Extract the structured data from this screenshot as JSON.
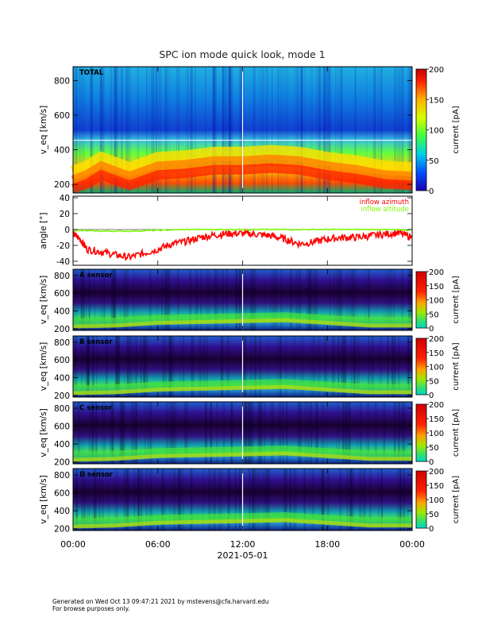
{
  "title": "SPC ion mode quick look, mode 1",
  "chart_data": [
    {
      "type": "heatmap",
      "panel_label": "TOTAL",
      "ylabel": "v_eq [km/s]",
      "ylim": [
        150,
        880
      ],
      "yticks": [
        200,
        400,
        600,
        800
      ],
      "colorbar": {
        "label": "current [pA]",
        "range": [
          0,
          200
        ],
        "ticks": [
          0,
          50,
          100,
          150,
          200
        ],
        "colormap": "rainbow"
      },
      "peak_ridge": {
        "x_hours": [
          0,
          1,
          2,
          3,
          4,
          5,
          6,
          8,
          10,
          12,
          14,
          16,
          18,
          20,
          22,
          24
        ],
        "v_kms": [
          220,
          250,
          300,
          270,
          240,
          270,
          300,
          310,
          330,
          330,
          340,
          330,
          300,
          280,
          250,
          240
        ]
      }
    },
    {
      "type": "line",
      "ylabel": "angle [°]",
      "ylim": [
        -45,
        42
      ],
      "yticks": [
        -40,
        -20,
        0,
        20,
        40
      ],
      "series": [
        {
          "name": "inflow azimuth",
          "color": "#ff0000",
          "x_hours": [
            0,
            0.5,
            1,
            2,
            3,
            4,
            5,
            6,
            7,
            8,
            9,
            10,
            11,
            12,
            13,
            14,
            15,
            16,
            17,
            18,
            19,
            20,
            21,
            22,
            23,
            24
          ],
          "values": [
            -5,
            -12,
            -25,
            -28,
            -32,
            -35,
            -30,
            -25,
            -18,
            -15,
            -10,
            -7,
            -5,
            -5,
            -6,
            -8,
            -12,
            -18,
            -16,
            -12,
            -10,
            -10,
            -8,
            -6,
            -4,
            -10
          ]
        },
        {
          "name": "inflow altitude",
          "color": "#7cfc00",
          "x_hours": [
            0,
            2,
            4,
            6,
            8,
            10,
            12,
            14,
            16,
            18,
            20,
            22,
            24
          ],
          "values": [
            -1,
            -2,
            -2,
            -1,
            0,
            0,
            0,
            0,
            0,
            0,
            0,
            0,
            -1
          ]
        }
      ]
    },
    {
      "type": "heatmap",
      "panel_label": "A sensor",
      "ylabel": "v_eq [km/s]",
      "ylim": [
        180,
        870
      ],
      "yticks": [
        200,
        400,
        600,
        800
      ],
      "colorbar": {
        "label": "current [pA]",
        "range": [
          0,
          200
        ],
        "ticks": [
          0,
          50,
          100,
          150,
          200
        ]
      }
    },
    {
      "type": "heatmap",
      "panel_label": "B sensor",
      "ylabel": "v_eq [km/s]",
      "ylim": [
        180,
        870
      ],
      "yticks": [
        200,
        400,
        600,
        800
      ],
      "colorbar": {
        "label": "current [pA]",
        "range": [
          0,
          200
        ],
        "ticks": [
          0,
          50,
          100,
          150,
          200
        ]
      }
    },
    {
      "type": "heatmap",
      "panel_label": "C sensor",
      "ylabel": "v_eq [km/s]",
      "ylim": [
        180,
        870
      ],
      "yticks": [
        200,
        400,
        600,
        800
      ],
      "colorbar": {
        "label": "current [pA]",
        "range": [
          0,
          200
        ],
        "ticks": [
          0,
          50,
          100,
          150,
          200
        ]
      }
    },
    {
      "type": "heatmap",
      "panel_label": "D sensor",
      "ylabel": "v_eq [km/s]",
      "ylim": [
        180,
        870
      ],
      "yticks": [
        200,
        400,
        600,
        800
      ],
      "colorbar": {
        "label": "current [pA]",
        "range": [
          0,
          200
        ],
        "ticks": [
          0,
          50,
          100,
          150,
          200
        ]
      }
    }
  ],
  "x_axis": {
    "tick_labels": [
      "00:00",
      "06:00",
      "12:00",
      "18:00",
      "00:00"
    ],
    "tick_hours": [
      0,
      6,
      12,
      18,
      24
    ],
    "date_label": "2021-05-01"
  },
  "footer": {
    "line1": "Generated on Wed Oct 13 09:47:21 2021 by mstevens@cfa.harvard.edu",
    "line2": "For browse purposes only."
  }
}
